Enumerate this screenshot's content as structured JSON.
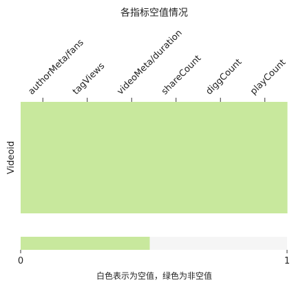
{
  "chart_data": {
    "type": "heatmap",
    "title": "各指标空值情况",
    "columns": [
      "authorMeta/fans",
      "tagViews",
      "videoMeta/duration",
      "shareCount",
      "diggCount",
      "playCount"
    ],
    "rows": [
      "Videoid"
    ],
    "values": [
      [
        1,
        1,
        1,
        1,
        1,
        1
      ]
    ],
    "value_meaning": {
      "0": "空值",
      "1": "非空值"
    },
    "colors": {
      "null": "#f5f5f5",
      "non_null": "#c8e89d"
    },
    "colorbar": {
      "ticks": [
        "0",
        "1"
      ],
      "range": [
        0,
        1
      ],
      "label": "白色表示为空值，绿色为非空值"
    },
    "grid": false
  }
}
